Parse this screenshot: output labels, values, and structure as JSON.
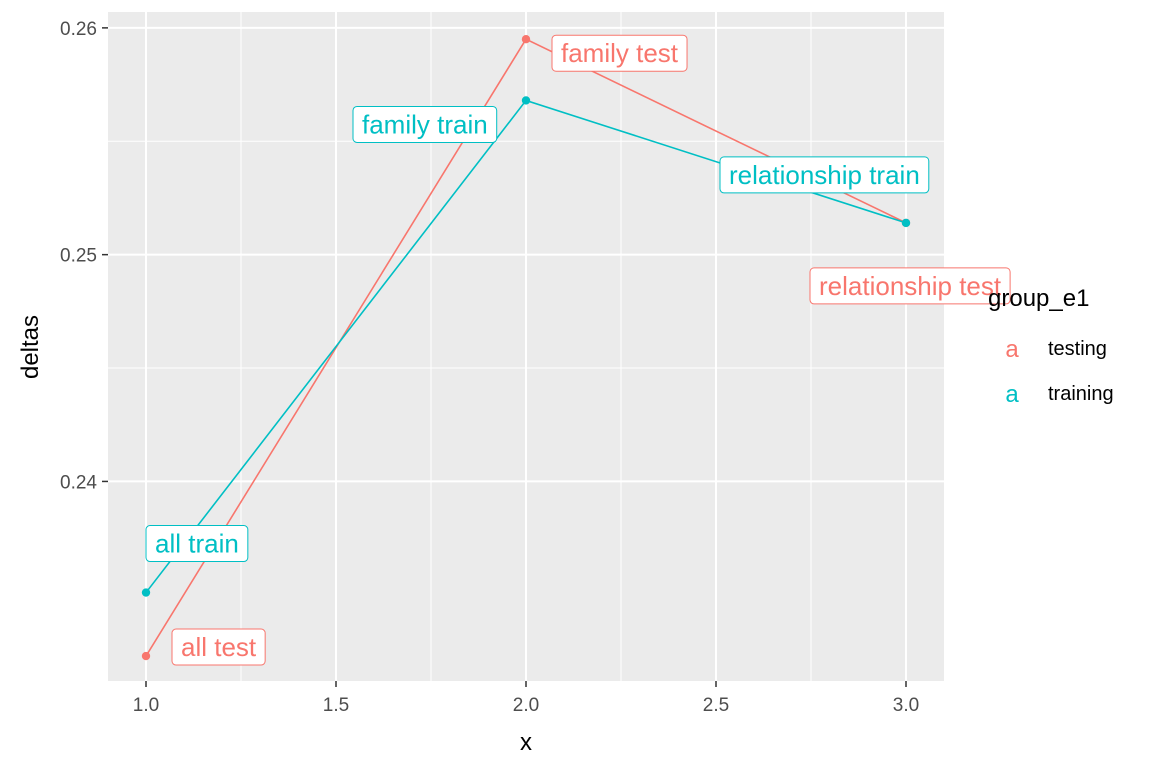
{
  "chart_data": {
    "type": "line",
    "x": [
      1.0,
      2.0,
      3.0
    ],
    "series": [
      {
        "name": "testing",
        "color": "#F8766D",
        "values": [
          0.2323,
          0.2595,
          0.2514
        ],
        "labels": [
          "all test",
          "family test",
          "relationship test"
        ]
      },
      {
        "name": "training",
        "color": "#00BFC4",
        "values": [
          0.2351,
          0.2568,
          0.2514
        ],
        "labels": [
          "all train",
          "family train",
          "relationship train"
        ]
      }
    ],
    "xlabel": "x",
    "ylabel": "deltas",
    "xlim": [
      0.9,
      3.1
    ],
    "ylim": [
      0.2312,
      0.2607
    ],
    "x_ticks": [
      1.0,
      1.5,
      2.0,
      2.5,
      3.0
    ],
    "x_tick_labels": [
      "1.0",
      "1.5",
      "2.0",
      "2.5",
      "3.0"
    ],
    "y_ticks": [
      0.24,
      0.25,
      0.26
    ],
    "y_tick_labels": [
      "0.24",
      "0.25",
      "0.26"
    ],
    "grid": true,
    "legend": {
      "title": "group_e1",
      "position": "right",
      "key_glyph": "a"
    },
    "panel_background": "#EBEBEB",
    "grid_color": "#FFFFFF"
  }
}
